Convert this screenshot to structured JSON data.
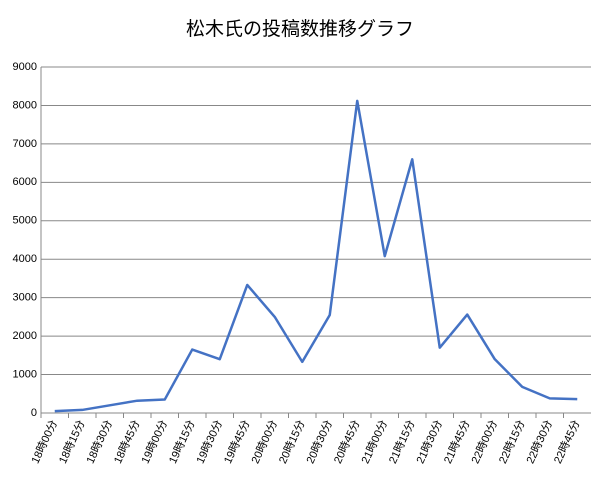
{
  "chart_data": {
    "type": "line",
    "title": "松木氏の投稿数推移グラフ",
    "categories": [
      "18時00分",
      "18時15分",
      "18時30分",
      "18時45分",
      "19時00分",
      "19時15分",
      "19時30分",
      "19時45分",
      "20時00分",
      "20時15分",
      "20時30分",
      "20時45分",
      "21時00分",
      "21時15分",
      "21時30分",
      "21時45分",
      "22時00分",
      "22時15分",
      "22時30分",
      "22時45分"
    ],
    "series": [
      {
        "name": "投稿数",
        "color": "#4472c4",
        "values": [
          50,
          80,
          200,
          320,
          350,
          1650,
          1400,
          3330,
          2500,
          1330,
          2550,
          8120,
          4080,
          6600,
          1700,
          2560,
          1400,
          680,
          380,
          360
        ]
      }
    ],
    "ylim": [
      0,
      9000
    ],
    "yticks": [
      0,
      1000,
      2000,
      3000,
      4000,
      5000,
      6000,
      7000,
      8000,
      9000
    ],
    "grid": true
  }
}
